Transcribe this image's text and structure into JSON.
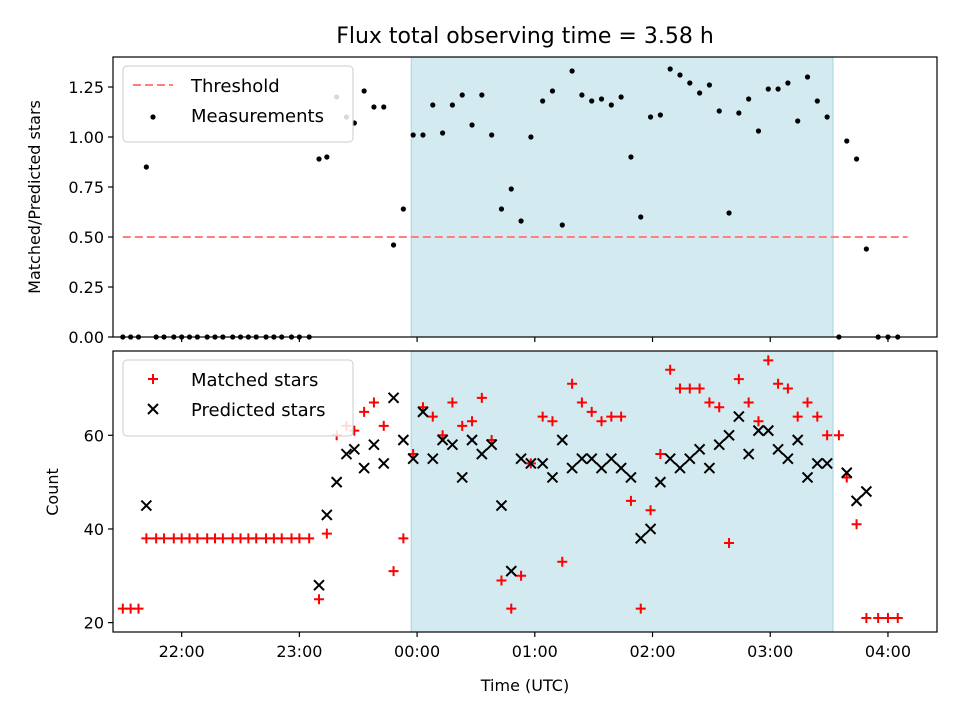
{
  "chart_data": [
    {
      "type": "scatter",
      "title": "Flux total observing time = 3.58 h",
      "xlabel": "",
      "ylabel": "Matched/Predicted stars",
      "xlim": [
        "21:25",
        "04:25"
      ],
      "ylim": [
        0,
        1.4
      ],
      "yticks": [
        "0.00",
        "0.25",
        "0.50",
        "0.75",
        "1.00",
        "1.25"
      ],
      "shaded_span": [
        "23:57",
        "03:32"
      ],
      "shade_color": "#d3eaf1",
      "grid": false,
      "legend_position": "upper left",
      "threshold": {
        "name": "Threshold",
        "value": 0.5,
        "x_range": [
          "21:30",
          "04:10"
        ],
        "color": "#ff7f7f",
        "style": "dashed"
      },
      "series": [
        {
          "name": "Measurements",
          "color": "#000000",
          "marker": "dot",
          "points": [
            [
              "21:30",
              0
            ],
            [
              "21:34",
              0
            ],
            [
              "21:38",
              0
            ],
            [
              "21:42",
              0.85
            ],
            [
              "21:47",
              0
            ],
            [
              "21:51",
              0
            ],
            [
              "21:56",
              0
            ],
            [
              "22:00",
              0
            ],
            [
              "22:04",
              0
            ],
            [
              "22:08",
              0
            ],
            [
              "22:13",
              0
            ],
            [
              "22:17",
              0
            ],
            [
              "22:21",
              0
            ],
            [
              "22:26",
              0
            ],
            [
              "22:30",
              0
            ],
            [
              "22:34",
              0
            ],
            [
              "22:38",
              0
            ],
            [
              "22:43",
              0
            ],
            [
              "22:47",
              0
            ],
            [
              "22:51",
              0
            ],
            [
              "22:56",
              0
            ],
            [
              "23:00",
              0
            ],
            [
              "23:05",
              0
            ],
            [
              "23:10",
              0.89
            ],
            [
              "23:14",
              0.9
            ],
            [
              "23:19",
              1.2
            ],
            [
              "23:24",
              1.1
            ],
            [
              "23:28",
              1.07
            ],
            [
              "23:33",
              1.23
            ],
            [
              "23:38",
              1.15
            ],
            [
              "23:43",
              1.15
            ],
            [
              "23:48",
              0.46
            ],
            [
              "23:53",
              0.64
            ],
            [
              "23:58",
              1.01
            ],
            [
              "00:03",
              1.01
            ],
            [
              "00:08",
              1.16
            ],
            [
              "00:13",
              1.02
            ],
            [
              "00:18",
              1.16
            ],
            [
              "00:23",
              1.21
            ],
            [
              "00:28",
              1.06
            ],
            [
              "00:33",
              1.21
            ],
            [
              "00:38",
              1.01
            ],
            [
              "00:43",
              0.64
            ],
            [
              "00:48",
              0.74
            ],
            [
              "00:53",
              0.58
            ],
            [
              "00:58",
              1.0
            ],
            [
              "01:04",
              1.18
            ],
            [
              "01:09",
              1.23
            ],
            [
              "01:14",
              0.56
            ],
            [
              "01:19",
              1.33
            ],
            [
              "01:24",
              1.21
            ],
            [
              "01:29",
              1.18
            ],
            [
              "01:34",
              1.19
            ],
            [
              "01:39",
              1.16
            ],
            [
              "01:44",
              1.2
            ],
            [
              "01:49",
              0.9
            ],
            [
              "01:54",
              0.6
            ],
            [
              "01:59",
              1.1
            ],
            [
              "02:04",
              1.11
            ],
            [
              "02:09",
              1.34
            ],
            [
              "02:14",
              1.31
            ],
            [
              "02:19",
              1.27
            ],
            [
              "02:24",
              1.22
            ],
            [
              "02:29",
              1.26
            ],
            [
              "02:34",
              1.13
            ],
            [
              "02:39",
              0.62
            ],
            [
              "02:44",
              1.12
            ],
            [
              "02:49",
              1.19
            ],
            [
              "02:54",
              1.03
            ],
            [
              "02:59",
              1.24
            ],
            [
              "03:04",
              1.24
            ],
            [
              "03:09",
              1.27
            ],
            [
              "03:14",
              1.08
            ],
            [
              "03:19",
              1.3
            ],
            [
              "03:24",
              1.18
            ],
            [
              "03:29",
              1.1
            ],
            [
              "03:35",
              0
            ],
            [
              "03:39",
              0.98
            ],
            [
              "03:44",
              0.89
            ],
            [
              "03:49",
              0.44
            ],
            [
              "03:55",
              0
            ],
            [
              "04:00",
              0
            ],
            [
              "04:05",
              0
            ]
          ]
        }
      ]
    },
    {
      "type": "scatter",
      "title": "",
      "xlabel": "Time (UTC)",
      "ylabel": "Count",
      "xlim": [
        "21:25",
        "04:25"
      ],
      "ylim": [
        18,
        78
      ],
      "yticks": [
        "20",
        "40",
        "60"
      ],
      "xticks": [
        "22:00",
        "23:00",
        "00:00",
        "01:00",
        "02:00",
        "03:00",
        "04:00"
      ],
      "shaded_span": [
        "23:57",
        "03:32"
      ],
      "shade_color": "#d3eaf1",
      "grid": false,
      "legend_position": "upper left",
      "series": [
        {
          "name": "Matched stars",
          "color": "#ff0000",
          "marker": "plus",
          "points": [
            [
              "21:30",
              23
            ],
            [
              "21:34",
              23
            ],
            [
              "21:38",
              23
            ],
            [
              "21:42",
              38
            ],
            [
              "21:47",
              38
            ],
            [
              "21:51",
              38
            ],
            [
              "21:56",
              38
            ],
            [
              "22:00",
              38
            ],
            [
              "22:04",
              38
            ],
            [
              "22:08",
              38
            ],
            [
              "22:13",
              38
            ],
            [
              "22:17",
              38
            ],
            [
              "22:21",
              38
            ],
            [
              "22:26",
              38
            ],
            [
              "22:30",
              38
            ],
            [
              "22:34",
              38
            ],
            [
              "22:38",
              38
            ],
            [
              "22:43",
              38
            ],
            [
              "22:47",
              38
            ],
            [
              "22:51",
              38
            ],
            [
              "22:56",
              38
            ],
            [
              "23:00",
              38
            ],
            [
              "23:05",
              38
            ],
            [
              "23:10",
              25
            ],
            [
              "23:14",
              39
            ],
            [
              "23:19",
              60
            ],
            [
              "23:24",
              62
            ],
            [
              "23:28",
              61
            ],
            [
              "23:33",
              65
            ],
            [
              "23:38",
              67
            ],
            [
              "23:43",
              62
            ],
            [
              "23:48",
              31
            ],
            [
              "23:53",
              38
            ],
            [
              "23:58",
              56
            ],
            [
              "00:03",
              66
            ],
            [
              "00:08",
              64
            ],
            [
              "00:13",
              60
            ],
            [
              "00:18",
              67
            ],
            [
              "00:23",
              62
            ],
            [
              "00:28",
              63
            ],
            [
              "00:33",
              68
            ],
            [
              "00:38",
              59
            ],
            [
              "00:43",
              29
            ],
            [
              "00:48",
              23
            ],
            [
              "00:53",
              30
            ],
            [
              "00:58",
              54
            ],
            [
              "01:04",
              64
            ],
            [
              "01:09",
              63
            ],
            [
              "01:14",
              33
            ],
            [
              "01:19",
              71
            ],
            [
              "01:24",
              67
            ],
            [
              "01:29",
              65
            ],
            [
              "01:34",
              63
            ],
            [
              "01:39",
              64
            ],
            [
              "01:44",
              64
            ],
            [
              "01:49",
              46
            ],
            [
              "01:54",
              23
            ],
            [
              "01:59",
              44
            ],
            [
              "02:04",
              56
            ],
            [
              "02:09",
              74
            ],
            [
              "02:14",
              70
            ],
            [
              "02:19",
              70
            ],
            [
              "02:24",
              70
            ],
            [
              "02:29",
              67
            ],
            [
              "02:34",
              66
            ],
            [
              "02:39",
              37
            ],
            [
              "02:44",
              72
            ],
            [
              "02:49",
              67
            ],
            [
              "02:54",
              63
            ],
            [
              "02:59",
              76
            ],
            [
              "03:04",
              71
            ],
            [
              "03:09",
              70
            ],
            [
              "03:14",
              64
            ],
            [
              "03:19",
              67
            ],
            [
              "03:24",
              64
            ],
            [
              "03:29",
              60
            ],
            [
              "03:35",
              60
            ],
            [
              "03:39",
              51
            ],
            [
              "03:44",
              41
            ],
            [
              "03:49",
              21
            ],
            [
              "03:55",
              21
            ],
            [
              "04:00",
              21
            ],
            [
              "04:05",
              21
            ]
          ]
        },
        {
          "name": "Predicted stars",
          "color": "#000000",
          "marker": "x",
          "points": [
            [
              "21:42",
              45
            ],
            [
              "23:10",
              28
            ],
            [
              "23:14",
              43
            ],
            [
              "23:19",
              50
            ],
            [
              "23:24",
              56
            ],
            [
              "23:28",
              57
            ],
            [
              "23:33",
              53
            ],
            [
              "23:38",
              58
            ],
            [
              "23:43",
              54
            ],
            [
              "23:48",
              68
            ],
            [
              "23:53",
              59
            ],
            [
              "23:58",
              55
            ],
            [
              "00:03",
              65
            ],
            [
              "00:08",
              55
            ],
            [
              "00:13",
              59
            ],
            [
              "00:18",
              58
            ],
            [
              "00:23",
              51
            ],
            [
              "00:28",
              59
            ],
            [
              "00:33",
              56
            ],
            [
              "00:38",
              58
            ],
            [
              "00:43",
              45
            ],
            [
              "00:48",
              31
            ],
            [
              "00:53",
              55
            ],
            [
              "00:58",
              54
            ],
            [
              "01:04",
              54
            ],
            [
              "01:09",
              51
            ],
            [
              "01:14",
              59
            ],
            [
              "01:19",
              53
            ],
            [
              "01:24",
              55
            ],
            [
              "01:29",
              55
            ],
            [
              "01:34",
              53
            ],
            [
              "01:39",
              55
            ],
            [
              "01:44",
              53
            ],
            [
              "01:49",
              51
            ],
            [
              "01:54",
              38
            ],
            [
              "01:59",
              40
            ],
            [
              "02:04",
              50
            ],
            [
              "02:09",
              55
            ],
            [
              "02:14",
              53
            ],
            [
              "02:19",
              55
            ],
            [
              "02:24",
              57
            ],
            [
              "02:29",
              53
            ],
            [
              "02:34",
              58
            ],
            [
              "02:39",
              60
            ],
            [
              "02:44",
              64
            ],
            [
              "02:49",
              56
            ],
            [
              "02:54",
              61
            ],
            [
              "02:59",
              61
            ],
            [
              "03:04",
              57
            ],
            [
              "03:09",
              55
            ],
            [
              "03:14",
              59
            ],
            [
              "03:19",
              51
            ],
            [
              "03:24",
              54
            ],
            [
              "03:29",
              54
            ],
            [
              "03:39",
              52
            ],
            [
              "03:44",
              46
            ],
            [
              "03:49",
              48
            ]
          ]
        }
      ]
    }
  ]
}
